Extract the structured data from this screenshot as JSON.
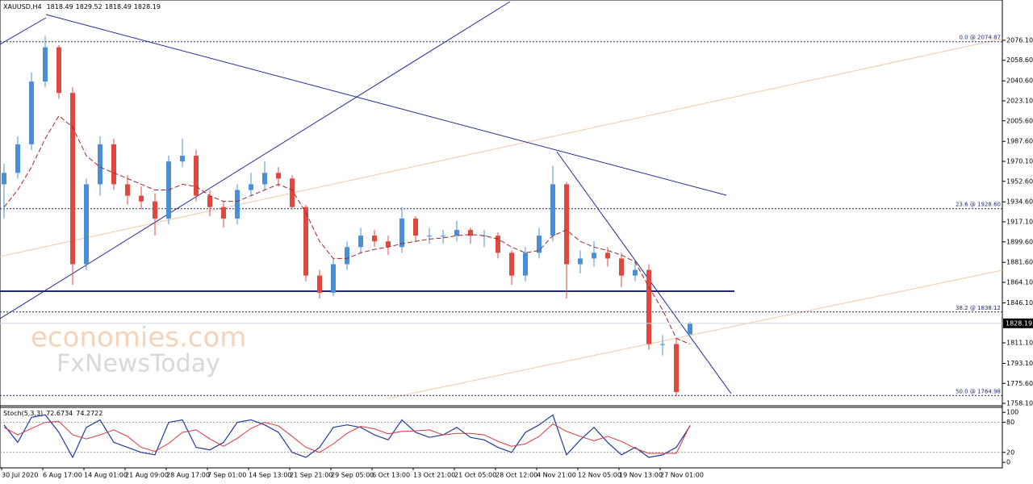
{
  "chart_data": {
    "type": "candlestick",
    "symbol": "XAUUSD,H4",
    "categories": [
      "30 Jul 2020",
      null,
      null,
      "6 Aug 17:00",
      null,
      null,
      "14 Aug 01:00",
      null,
      null,
      "21 Aug 09:00",
      null,
      null,
      "28 Aug 17:00",
      null,
      null,
      "7 Sep 01:00",
      null,
      null,
      "14 Sep 13:00",
      null,
      null,
      "21 Sep 21:00",
      null,
      null,
      "29 Sep 05:00",
      null,
      null,
      "6 Oct 13:00",
      null,
      null,
      "13 Oct 21:00",
      null,
      null,
      "21 Oct 05:00",
      null,
      null,
      "28 Oct 12:00",
      null,
      null,
      "4 Nov 21:00",
      null,
      null,
      "12 Nov 05:00",
      null,
      null,
      "19 Nov 13:00",
      null,
      null,
      "27 Nov 01:00",
      null,
      null
    ],
    "open": [
      1950,
      1960,
      1985,
      2040,
      2070,
      2030,
      1880,
      1950,
      1985,
      1950,
      1940,
      1935,
      1920,
      1970,
      1975,
      1940,
      1930,
      1920,
      1945,
      1950,
      1960,
      1955,
      1930,
      1870,
      1855,
      1880,
      1895,
      1905,
      1900,
      1895,
      1920,
      1905,
      1905,
      1905,
      1910,
      1905,
      1905,
      1890,
      1870,
      1890,
      1905,
      1950,
      1880,
      1885,
      1890,
      1885,
      1870,
      1875,
      1810,
      1810,
      1818.49
    ],
    "high": [
      1968,
      1992,
      2048,
      2080,
      2072,
      2035,
      1955,
      1992,
      1990,
      1958,
      1948,
      1942,
      1975,
      1990,
      1980,
      1945,
      1935,
      1950,
      1960,
      1970,
      1965,
      1958,
      1932,
      1875,
      1885,
      1900,
      1912,
      1910,
      1905,
      1930,
      1922,
      1912,
      1910,
      1918,
      1912,
      1910,
      1908,
      1892,
      1895,
      1912,
      1966,
      1952,
      1892,
      1900,
      1895,
      1890,
      1882,
      1880,
      1818,
      1815,
      1829.52
    ],
    "low": [
      1920,
      1955,
      1980,
      2035,
      2025,
      1862,
      1875,
      1940,
      1945,
      1932,
      1928,
      1905,
      1915,
      1965,
      1935,
      1922,
      1912,
      1915,
      1940,
      1945,
      1948,
      1928,
      1865,
      1850,
      1852,
      1875,
      1890,
      1895,
      1888,
      1890,
      1900,
      1898,
      1898,
      1900,
      1898,
      1895,
      1885,
      1862,
      1865,
      1885,
      1900,
      1850,
      1872,
      1878,
      1878,
      1860,
      1865,
      1805,
      1800,
      1764,
      1818.49
    ],
    "close": [
      1960,
      1985,
      2040,
      2070,
      2030,
      1880,
      1950,
      1985,
      1950,
      1940,
      1935,
      1920,
      1970,
      1975,
      1940,
      1930,
      1920,
      1945,
      1950,
      1960,
      1955,
      1930,
      1870,
      1855,
      1880,
      1895,
      1905,
      1900,
      1895,
      1920,
      1905,
      1905,
      1905,
      1910,
      1905,
      1905,
      1890,
      1870,
      1890,
      1905,
      1950,
      1880,
      1885,
      1890,
      1885,
      1870,
      1875,
      1810,
      1810,
      1768,
      1828.19
    ],
    "ma": [
      1930,
      1945,
      1965,
      1990,
      2010,
      2000,
      1975,
      1965,
      1960,
      1955,
      1950,
      1945,
      1945,
      1950,
      1948,
      1940,
      1935,
      1935,
      1940,
      1945,
      1950,
      1945,
      1925,
      1900,
      1885,
      1885,
      1890,
      1893,
      1895,
      1898,
      1900,
      1902,
      1903,
      1905,
      1906,
      1905,
      1902,
      1895,
      1890,
      1892,
      1905,
      1910,
      1900,
      1895,
      1892,
      1888,
      1882,
      1860,
      1840,
      1815,
      1810
    ],
    "bull_color": "#4a8fd6",
    "bear_color": "#e0473f",
    "ma_color": "#a0262a",
    "ylim": [
      1756,
      2110
    ],
    "yticks": [
      {
        "value": 2076.1,
        "label": "2076.10"
      },
      {
        "value": 2058.6,
        "label": "2058.60"
      },
      {
        "value": 2040.6,
        "label": "2040.60"
      },
      {
        "value": 2023.1,
        "label": "2023.10"
      },
      {
        "value": 2005.6,
        "label": "2005.60"
      },
      {
        "value": 1987.6,
        "label": "1987.60"
      },
      {
        "value": 1970.1,
        "label": "1970.10"
      },
      {
        "value": 1952.6,
        "label": "1952.60"
      },
      {
        "value": 1934.6,
        "label": "1934.60"
      },
      {
        "value": 1917.1,
        "label": "1917.10"
      },
      {
        "value": 1899.6,
        "label": "1899.60"
      },
      {
        "value": 1881.6,
        "label": "1881.60"
      },
      {
        "value": 1864.1,
        "label": "1864.10"
      },
      {
        "value": 1846.1,
        "label": "1846.10"
      },
      {
        "value": 1811.1,
        "label": "1811.10"
      },
      {
        "value": 1793.1,
        "label": "1793.10"
      },
      {
        "value": 1775.6,
        "label": "1775.60"
      },
      {
        "value": 1758.1,
        "label": "1758.10"
      }
    ],
    "fib_levels": [
      {
        "value": 2074.87,
        "label": "0.0 @ 2074.87"
      },
      {
        "value": 1928.6,
        "label": "23.6 @ 1928.60"
      },
      {
        "value": 1838.12,
        "label": "38.2 @ 1838.12"
      },
      {
        "value": 1764.98,
        "label": "50.0 @ 1764.98"
      }
    ],
    "watermark": [
      "economies.com",
      "FxNewsToday"
    ],
    "stoch": {
      "name": "Stoch(5,3,3)",
      "k": [
        75,
        40,
        90,
        95,
        60,
        10,
        70,
        85,
        40,
        30,
        20,
        15,
        80,
        85,
        30,
        25,
        40,
        80,
        85,
        75,
        60,
        20,
        10,
        30,
        70,
        75,
        70,
        55,
        45,
        85,
        60,
        50,
        55,
        70,
        50,
        45,
        30,
        20,
        60,
        75,
        95,
        15,
        45,
        70,
        40,
        15,
        30,
        10,
        15,
        30,
        72.6734
      ],
      "d": [
        70,
        55,
        68,
        80,
        82,
        55,
        47,
        55,
        65,
        52,
        30,
        22,
        38,
        60,
        65,
        47,
        32,
        48,
        68,
        80,
        73,
        52,
        30,
        20,
        37,
        58,
        72,
        67,
        57,
        62,
        63,
        65,
        55,
        58,
        58,
        55,
        42,
        32,
        37,
        52,
        77,
        62,
        52,
        43,
        52,
        42,
        28,
        18,
        18,
        18,
        74.2722
      ],
      "k_color": "#1f3a9a",
      "d_color": "#d9363e",
      "ylim": [
        -11,
        110
      ],
      "yticks": [
        100,
        80,
        20,
        0
      ],
      "levels": [
        80,
        20
      ]
    }
  }
}
